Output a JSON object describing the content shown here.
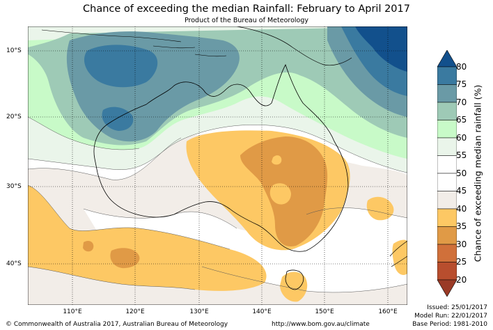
{
  "title": "Chance of exceeding the median Rainfall: February to April 2017",
  "subtitle": "Product of the Bureau of Meteorology",
  "map": {
    "lat_labels": [
      "10°S",
      "20°S",
      "30°S",
      "40°S"
    ],
    "lon_labels": [
      "110°E",
      "120°E",
      "130°E",
      "140°E",
      "150°E",
      "160°E"
    ]
  },
  "colorbar": {
    "label": "Chance of exceeding median rainfall (%)",
    "ticks": [
      "80",
      "75",
      "70",
      "65",
      "60",
      "55",
      "50",
      "45",
      "40",
      "35",
      "30",
      "25",
      "20"
    ],
    "colors": {
      "above_80": "#12508c",
      "75_80": "#3a7aa0",
      "70_75": "#6a9aa6",
      "65_70": "#9ecab6",
      "60_65": "#c8fac8",
      "55_60": "#eaf5ea",
      "45_55": "#ffffff",
      "40_45": "#f2ede8",
      "35_40": "#fdc864",
      "30_35": "#e09a46",
      "25_30": "#d0703a",
      "20_25": "#b84e2e",
      "below_20": "#9a3a26"
    }
  },
  "footer": {
    "copyright": "© Commonwealth of Australia 2017, Australian Bureau of Meteorology",
    "url": "http://www.bom.gov.au/climate",
    "issued": "Issued: 25/01/2017",
    "model_run": "Model Run: 22/01/2017",
    "base_period": "Base Period: 1981-2010"
  }
}
